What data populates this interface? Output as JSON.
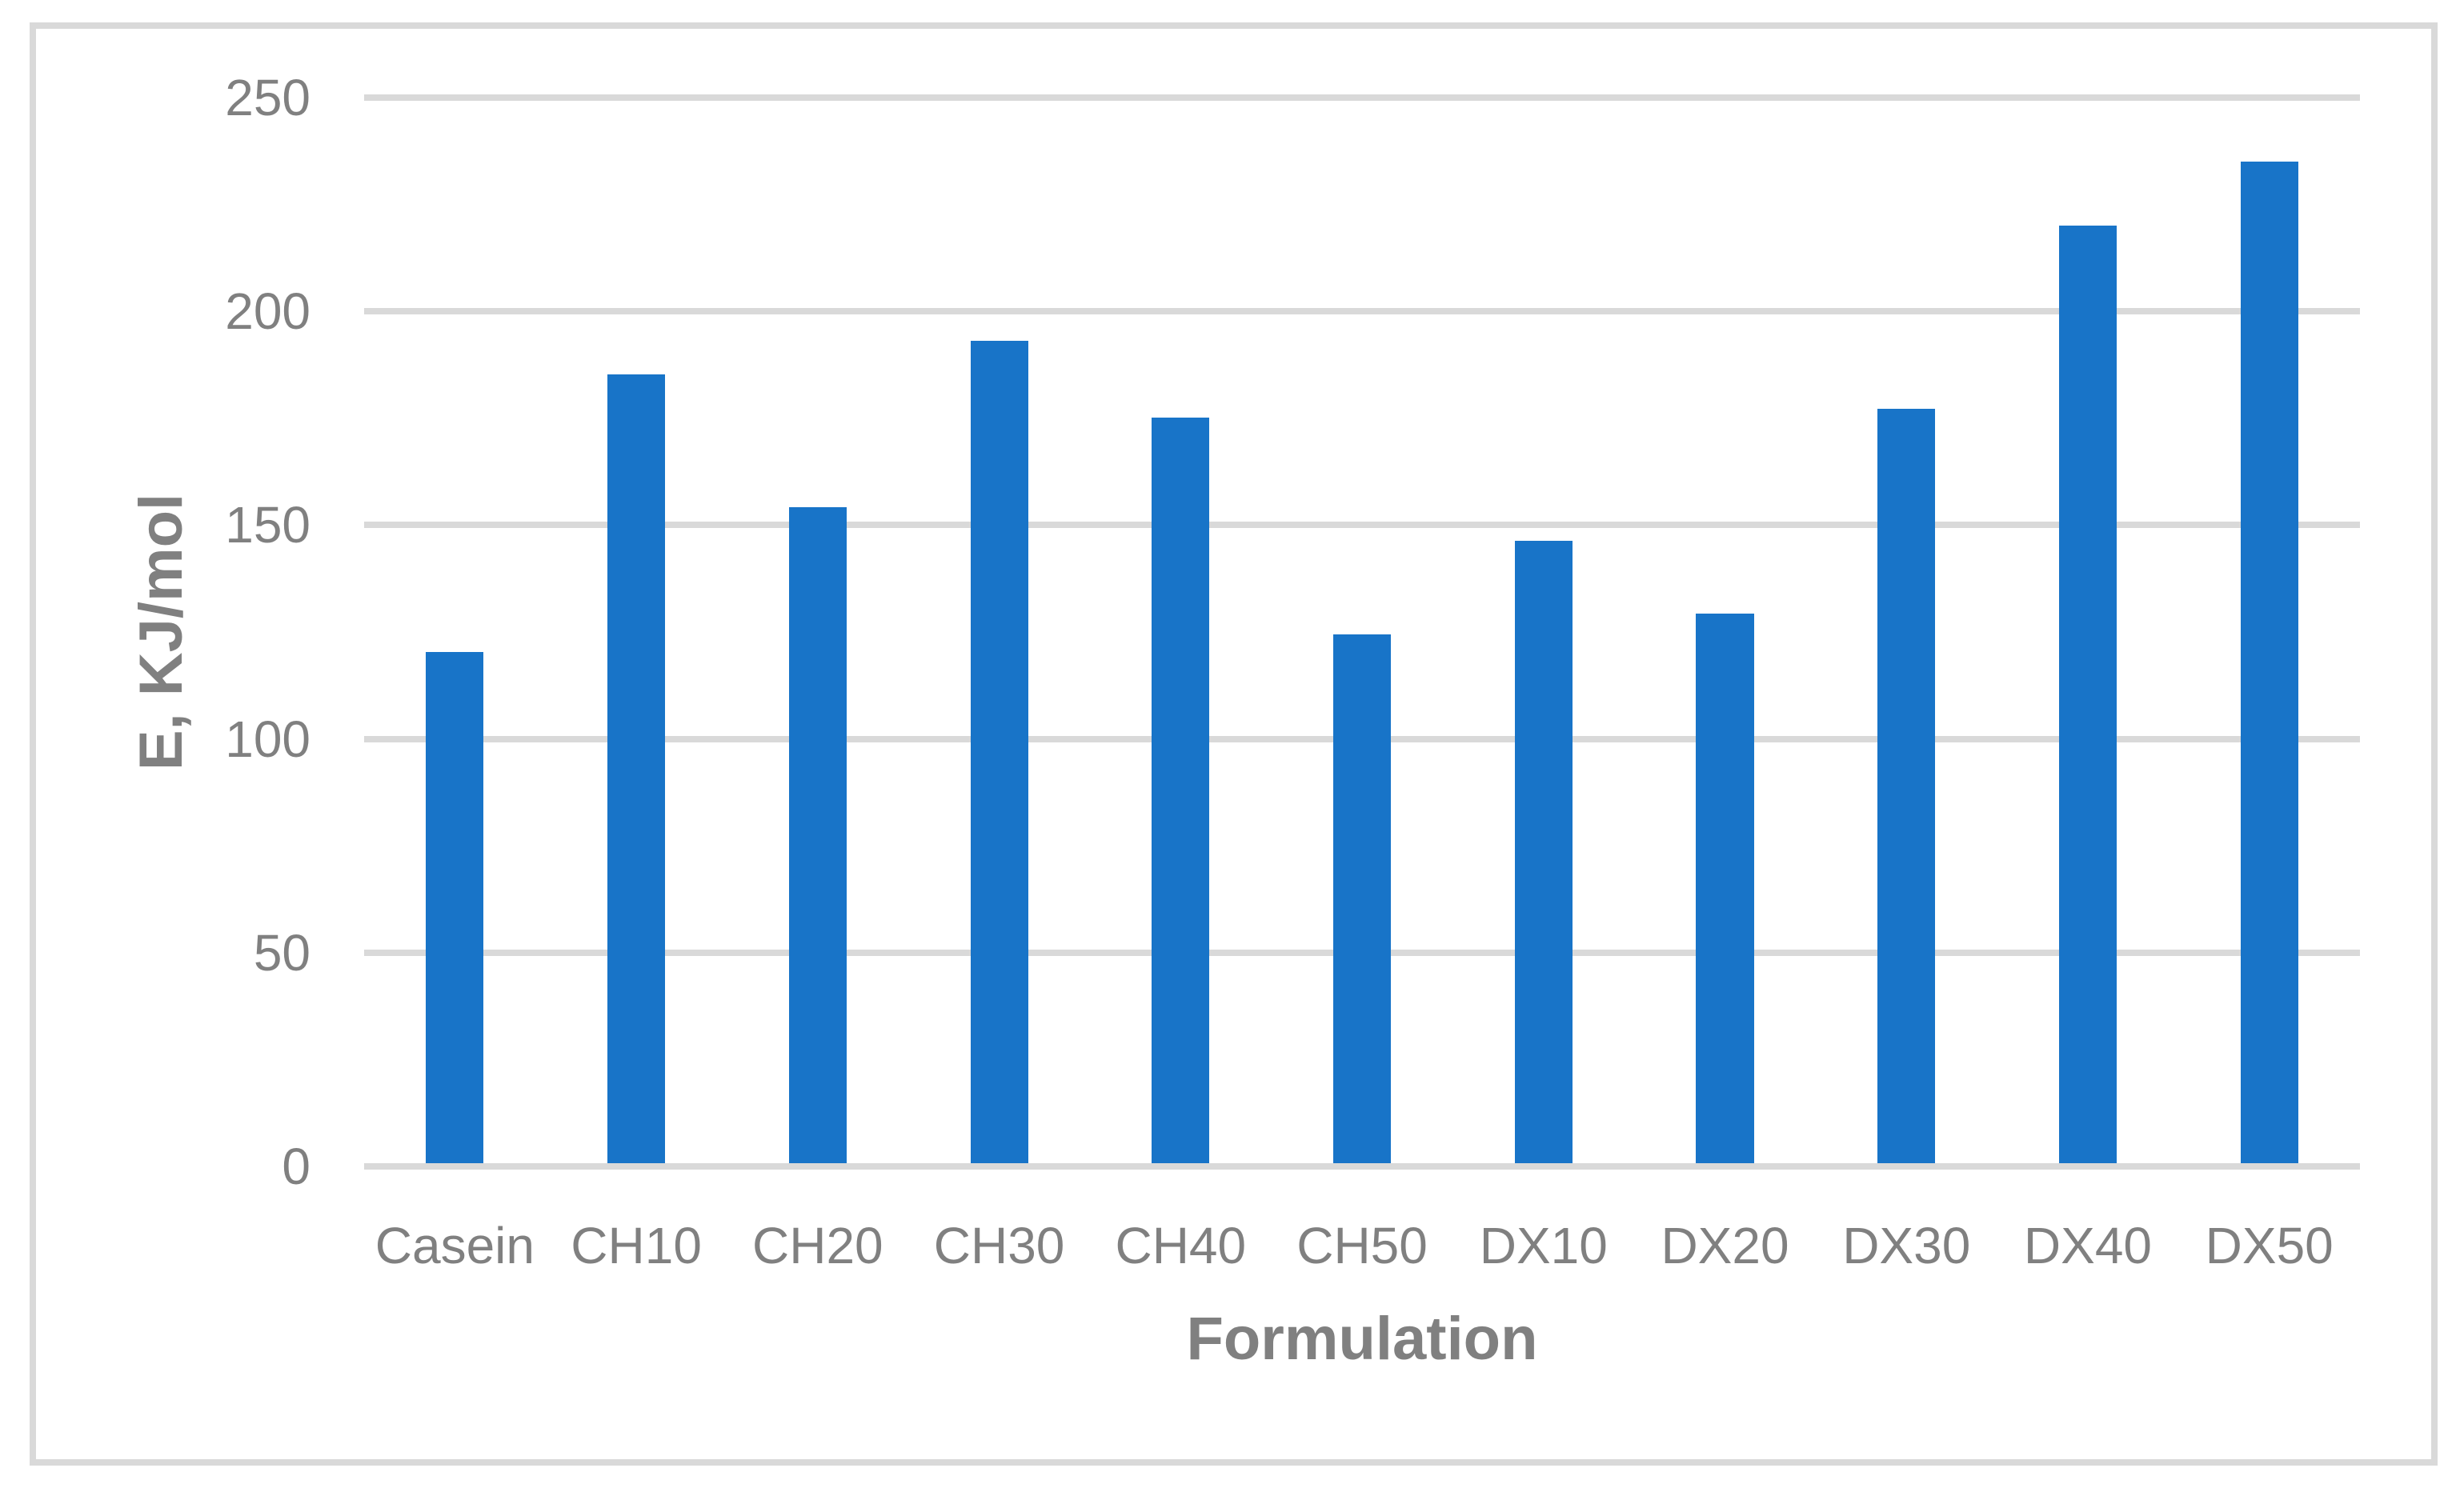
{
  "figure": {
    "background": "#FFFFFF",
    "border_color": "#D9D9D9",
    "text_color": "#808080"
  },
  "chart_data": {
    "type": "bar",
    "categories": [
      "Casein",
      "CH10",
      "CH20",
      "CH30",
      "CH40",
      "CH50",
      "DX10",
      "DX20",
      "DX30",
      "DX40",
      "DX50"
    ],
    "values": [
      120,
      185,
      154,
      193,
      175,
      124,
      146,
      129,
      177,
      220,
      235
    ],
    "title": "",
    "xlabel": "Formulation",
    "ylabel": "E, KJ/mol",
    "ylim": [
      0,
      250
    ],
    "yticks": [
      250,
      200,
      150,
      100,
      50,
      0
    ],
    "bar_color": "#1874C8",
    "gridline_color": "#D9D9D9",
    "grid": true,
    "legend": "none"
  }
}
